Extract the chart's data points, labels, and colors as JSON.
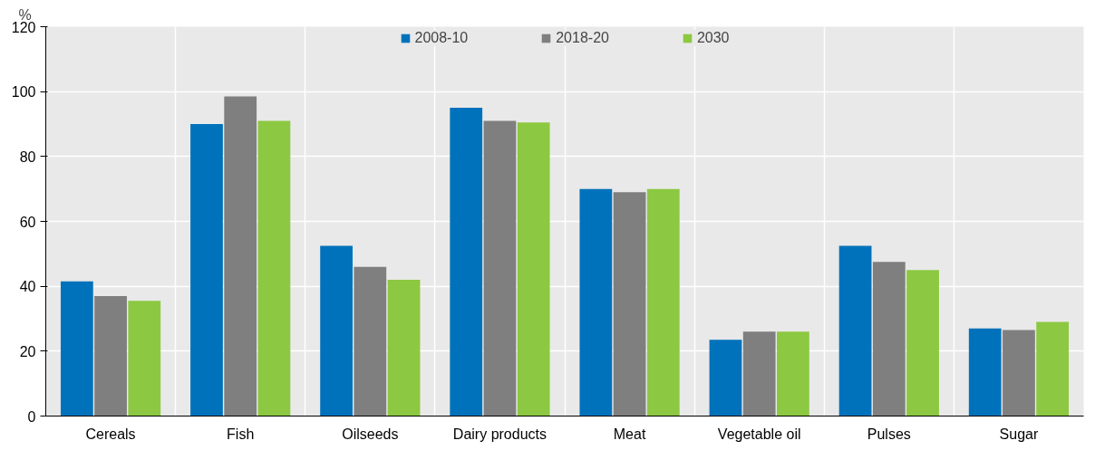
{
  "chart_data": {
    "type": "bar",
    "ylabel": "%",
    "categories": [
      "Cereals",
      "Fish",
      "Oilseeds",
      "Dairy products",
      "Meat",
      "Vegetable oil",
      "Pulses",
      "Sugar"
    ],
    "series": [
      {
        "name": "2008-10",
        "color": "#0072bc",
        "values": [
          41.5,
          90,
          52.5,
          95,
          70,
          23.5,
          52.5,
          27
        ]
      },
      {
        "name": "2018-20",
        "color": "#7f7f7f",
        "values": [
          37,
          98.5,
          46,
          91,
          69,
          26,
          47.5,
          26.5
        ]
      },
      {
        "name": "2030",
        "color": "#8cc841",
        "values": [
          35.5,
          91,
          42,
          90.5,
          70,
          26,
          45,
          29
        ]
      }
    ],
    "ylim": [
      0,
      120
    ],
    "yticks": [
      0,
      20,
      40,
      60,
      80,
      100,
      120
    ],
    "grid": true,
    "legend": "top"
  }
}
